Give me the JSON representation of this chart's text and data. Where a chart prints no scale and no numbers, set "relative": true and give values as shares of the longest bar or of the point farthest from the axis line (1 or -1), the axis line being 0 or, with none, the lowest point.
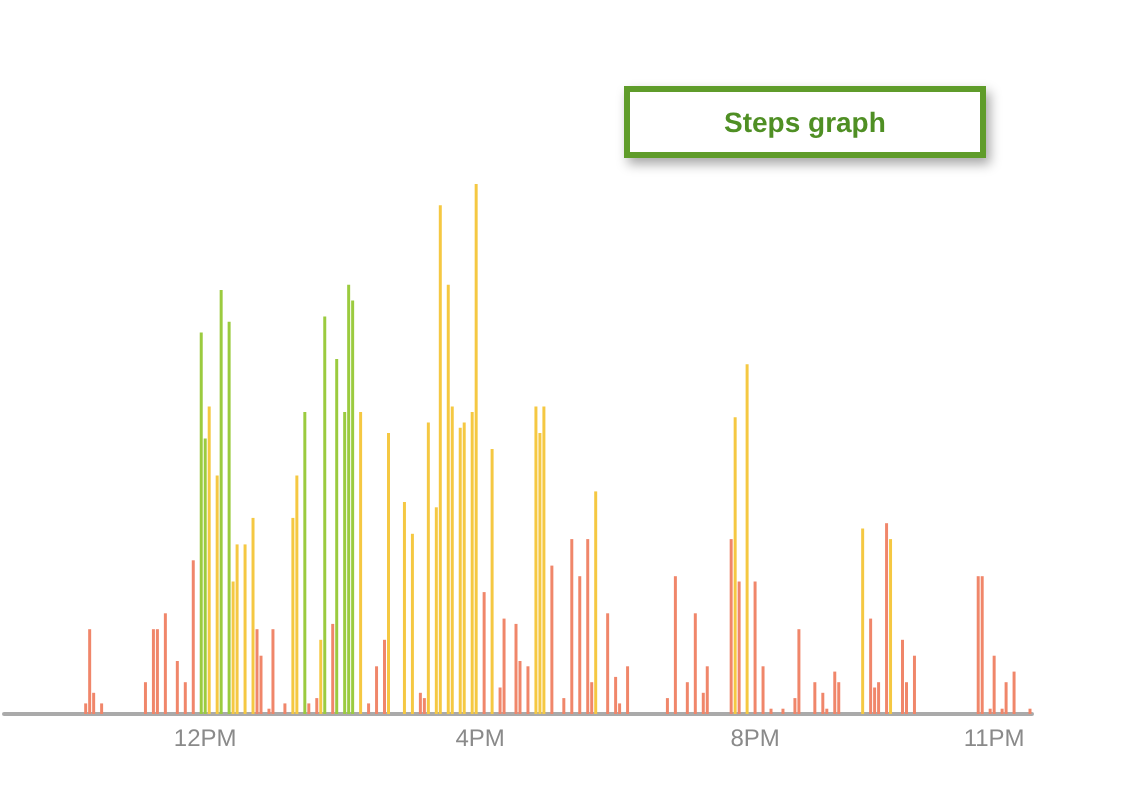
{
  "chart_data": {
    "type": "bar",
    "title": "Steps graph",
    "relative": true,
    "categories": [
      null,
      null,
      null,
      null,
      null,
      null,
      null,
      null,
      null,
      null,
      null,
      null,
      null,
      null,
      null,
      null,
      null,
      null,
      null,
      null,
      null,
      null,
      null,
      null,
      null,
      null,
      null,
      null,
      null,
      null,
      null,
      null,
      null,
      null,
      null,
      null,
      null,
      null,
      null,
      null,
      null,
      null,
      null,
      null,
      null,
      null,
      null,
      null,
      null,
      null,
      "12PM",
      null,
      null,
      null,
      null,
      null,
      null,
      null,
      null,
      null,
      null,
      null,
      null,
      null,
      null,
      null,
      null,
      null,
      null,
      null,
      null,
      null,
      null,
      null,
      null,
      null,
      null,
      null,
      null,
      null,
      null,
      null,
      null,
      null,
      null,
      null,
      null,
      null,
      null,
      null,
      null,
      null,
      null,
      null,
      null,
      null,
      null,
      null,
      null,
      null,
      null,
      null,
      null,
      null,
      null,
      null,
      null,
      null,
      null,
      null,
      null,
      null,
      null,
      null,
      null,
      null,
      null,
      null,
      null,
      "4PM",
      null,
      null,
      null,
      null,
      null,
      null,
      null,
      null,
      null,
      null,
      null,
      null,
      null,
      null,
      null,
      null,
      null,
      null,
      null,
      null,
      null,
      null,
      null,
      null,
      null,
      null,
      null,
      null,
      null,
      null,
      null,
      null,
      null,
      null,
      null,
      null,
      null,
      null,
      null,
      null,
      null,
      null,
      null,
      null,
      null,
      null,
      null,
      null,
      null,
      null,
      null,
      null,
      null,
      null,
      null,
      null,
      null,
      null,
      null,
      null,
      null,
      null,
      null,
      null,
      null,
      null,
      null,
      null,
      "8PM",
      null,
      null,
      null,
      null,
      null,
      null,
      null,
      null,
      null,
      null,
      null,
      null,
      null,
      null,
      null,
      null,
      null,
      null,
      null,
      null,
      null,
      null,
      null,
      null,
      null,
      null,
      null,
      null,
      null,
      null,
      null,
      null,
      null,
      null,
      null,
      null,
      null,
      null,
      null,
      null,
      null,
      null,
      null,
      null,
      null,
      null,
      null,
      null,
      null,
      null,
      null,
      null,
      null,
      null,
      null,
      null,
      null,
      null,
      null,
      "11PM",
      null,
      null,
      null,
      null,
      null,
      null,
      null,
      null,
      null
    ],
    "values": [
      null,
      null,
      null,
      null,
      null,
      null,
      null,
      null,
      null,
      null,
      null,
      null,
      null,
      null,
      null,
      null,
      null,
      null,
      null,
      null,
      0.02,
      0.16,
      0.04,
      null,
      0.02,
      null,
      null,
      null,
      null,
      null,
      null,
      null,
      null,
      null,
      null,
      0.06,
      null,
      0.16,
      0.16,
      null,
      0.19,
      null,
      null,
      0.1,
      null,
      0.06,
      null,
      0.29,
      null,
      0.72,
      0.52,
      0.58,
      null,
      0.45,
      0.8,
      null,
      0.74,
      0.25,
      0.32,
      null,
      0.32,
      null,
      0.37,
      0.16,
      0.11,
      null,
      0.01,
      0.16,
      null,
      null,
      0.02,
      null,
      0.37,
      0.45,
      null,
      0.57,
      0.02,
      null,
      0.03,
      0.14,
      0.75,
      null,
      0.17,
      0.67,
      null,
      0.57,
      0.81,
      0.78,
      null,
      0.57,
      null,
      0.02,
      null,
      0.09,
      null,
      0.14,
      0.53,
      null,
      null,
      null,
      0.4,
      null,
      0.34,
      null,
      0.04,
      0.03,
      0.55,
      null,
      0.39,
      0.96,
      null,
      0.81,
      0.58,
      null,
      0.54,
      0.55,
      null,
      0.57,
      1,
      null,
      0.23,
      null,
      0.5,
      null,
      0.05,
      0.18,
      null,
      null,
      0.17,
      0.1,
      null,
      0.09,
      null,
      0.58,
      0.53,
      0.58,
      null,
      0.28,
      null,
      null,
      0.03,
      null,
      0.33,
      null,
      0.26,
      null,
      0.33,
      0.06,
      0.42,
      null,
      null,
      0.19,
      null,
      0.07,
      0.02,
      null,
      0.09,
      null,
      null,
      null,
      null,
      null,
      null,
      null,
      null,
      null,
      0.03,
      null,
      0.26,
      null,
      null,
      0.06,
      null,
      0.19,
      null,
      0.04,
      0.09,
      null,
      null,
      null,
      null,
      null,
      0.33,
      0.56,
      0.25,
      null,
      0.66,
      null,
      0.25,
      null,
      0.09,
      null,
      0.01,
      null,
      null,
      0.01,
      null,
      null,
      0.03,
      0.16,
      null,
      null,
      null,
      0.06,
      null,
      0.04,
      0.01,
      null,
      0.08,
      0.06,
      null,
      null,
      null,
      null,
      null,
      0.35,
      null,
      0.18,
      0.05,
      0.06,
      null,
      0.36,
      0.33,
      null,
      null,
      0.14,
      0.06,
      null,
      0.11,
      null,
      null,
      null,
      null,
      null,
      null,
      null,
      null,
      null,
      null,
      null,
      null,
      null,
      null,
      null,
      0.26,
      0.26,
      null,
      0.01,
      0.11,
      null,
      0.01,
      0.06,
      null,
      0.08,
      null,
      null,
      null,
      0.01
    ],
    "colors": [
      null,
      null,
      null,
      null,
      null,
      null,
      null,
      null,
      null,
      null,
      null,
      null,
      null,
      null,
      null,
      null,
      null,
      null,
      null,
      null,
      "#f0866a",
      "#f0866a",
      "#f0866a",
      null,
      "#f0866a",
      null,
      null,
      null,
      null,
      null,
      null,
      null,
      null,
      null,
      null,
      "#f0866a",
      null,
      "#f0866a",
      "#f0866a",
      null,
      "#f0866a",
      null,
      null,
      "#f0866a",
      null,
      "#f0866a",
      null,
      "#f0866a",
      null,
      "#9bcb3f",
      "#9bcb3f",
      "#f5c842",
      null,
      "#f5c842",
      "#9bcb3f",
      null,
      "#9bcb3f",
      "#f5c842",
      "#f5c842",
      null,
      "#f5c842",
      null,
      "#f5c842",
      "#f0866a",
      "#f0866a",
      null,
      "#f0866a",
      "#f0866a",
      null,
      null,
      "#f0866a",
      null,
      "#f5c842",
      "#f5c842",
      null,
      "#9bcb3f",
      "#f0866a",
      null,
      "#f0866a",
      "#f5c842",
      "#9bcb3f",
      null,
      "#f0866a",
      "#9bcb3f",
      null,
      "#9bcb3f",
      "#9bcb3f",
      "#9bcb3f",
      null,
      "#f5c842",
      null,
      "#f0866a",
      null,
      "#f0866a",
      null,
      "#f0866a",
      "#f5c842",
      null,
      null,
      null,
      "#f5c842",
      null,
      "#f5c842",
      null,
      "#f0866a",
      "#f0866a",
      "#f5c842",
      null,
      "#f5c842",
      "#f5c842",
      null,
      "#f5c842",
      "#f5c842",
      null,
      "#f5c842",
      "#f5c842",
      null,
      "#f5c842",
      "#f5c842",
      null,
      "#f0866a",
      null,
      "#f5c842",
      null,
      "#f0866a",
      "#f0866a",
      null,
      null,
      "#f0866a",
      "#f0866a",
      null,
      "#f0866a",
      null,
      "#f5c842",
      "#f5c842",
      "#f5c842",
      null,
      "#f0866a",
      null,
      null,
      "#f0866a",
      null,
      "#f0866a",
      null,
      "#f0866a",
      null,
      "#f0866a",
      "#f0866a",
      "#f5c842",
      null,
      null,
      "#f0866a",
      null,
      "#f0866a",
      "#f0866a",
      null,
      "#f0866a",
      null,
      null,
      null,
      null,
      null,
      null,
      null,
      null,
      null,
      "#f0866a",
      null,
      "#f0866a",
      null,
      null,
      "#f0866a",
      null,
      "#f0866a",
      null,
      "#f0866a",
      "#f0866a",
      null,
      null,
      null,
      null,
      null,
      "#f0866a",
      "#f5c842",
      "#f0866a",
      null,
      "#f5c842",
      null,
      "#f0866a",
      null,
      "#f0866a",
      null,
      "#f0866a",
      null,
      null,
      "#f0866a",
      null,
      null,
      "#f0866a",
      "#f0866a",
      null,
      null,
      null,
      "#f0866a",
      null,
      "#f0866a",
      "#f0866a",
      null,
      "#f0866a",
      "#f0866a",
      null,
      null,
      null,
      null,
      null,
      "#f5c842",
      null,
      "#f0866a",
      "#f0866a",
      "#f0866a",
      null,
      "#f0866a",
      "#f5c842",
      null,
      null,
      "#f0866a",
      "#f0866a",
      null,
      "#f0866a",
      null,
      null,
      null,
      null,
      null,
      null,
      null,
      null,
      null,
      null,
      null,
      null,
      null,
      null,
      null,
      "#f0866a",
      "#f0866a",
      null,
      "#f0866a",
      "#f0866a",
      null,
      "#f0866a",
      "#f0866a",
      null,
      "#f0866a",
      null,
      null,
      null,
      "#f0866a"
    ]
  }
}
